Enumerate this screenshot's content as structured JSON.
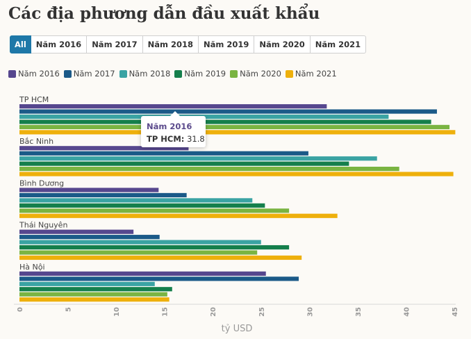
{
  "title": "Các địa phương dẫn đầu xuất khẩu",
  "tabs": [
    "All",
    "Năm 2016",
    "Năm 2017",
    "Năm 2018",
    "Năm 2019",
    "Năm 2020",
    "Năm 2021"
  ],
  "active_tab": "All",
  "tooltip": {
    "series": "Năm 2016",
    "category": "TP HCM",
    "separator": ":",
    "value": "31.8"
  },
  "chart_data": {
    "type": "bar",
    "orientation": "horizontal",
    "title": "Các địa phương dẫn đầu xuất khẩu",
    "xlabel": "tỷ USD",
    "ylabel": "",
    "xlim": [
      0,
      45
    ],
    "ticks": [
      0,
      5,
      10,
      15,
      20,
      25,
      30,
      35,
      40,
      45
    ],
    "grid": false,
    "legend_position": "top-left",
    "categories": [
      "TP HCM",
      "Bắc Ninh",
      "Bình Dương",
      "Thái Nguyên",
      "Hà Nội"
    ],
    "series": [
      {
        "name": "Năm 2016",
        "color": "#56478e",
        "values": [
          31.8,
          17.5,
          14.4,
          11.8,
          25.5
        ]
      },
      {
        "name": "Năm 2017",
        "color": "#1b5a88",
        "values": [
          43.2,
          29.9,
          17.3,
          14.5,
          28.9
        ]
      },
      {
        "name": "Năm 2018",
        "color": "#3aa3a3",
        "values": [
          38.2,
          37.0,
          24.1,
          25.0,
          14.0
        ]
      },
      {
        "name": "Năm 2019",
        "color": "#157f4c",
        "values": [
          42.6,
          34.1,
          25.4,
          27.9,
          15.8
        ]
      },
      {
        "name": "Năm 2020",
        "color": "#7ab442",
        "values": [
          44.5,
          39.3,
          27.9,
          24.6,
          15.3
        ]
      },
      {
        "name": "Năm 2021",
        "color": "#eeb00c",
        "values": [
          45.1,
          44.9,
          32.9,
          29.2,
          15.5
        ]
      }
    ]
  }
}
